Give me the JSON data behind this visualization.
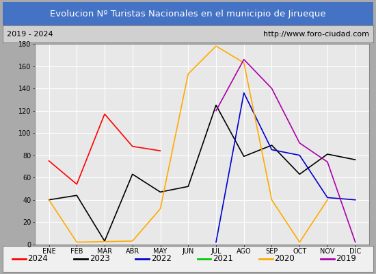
{
  "title": "Evolucion Nº Turistas Nacionales en el municipio de Jirueque",
  "subtitle_left": "2019 - 2024",
  "subtitle_right": "http://www.foro-ciudad.com",
  "months": [
    "ENE",
    "FEB",
    "MAR",
    "ABR",
    "MAY",
    "JUN",
    "JUL",
    "AGO",
    "SEP",
    "OCT",
    "NOV",
    "DIC"
  ],
  "series": {
    "2024": [
      75,
      54,
      117,
      88,
      84,
      null,
      null,
      null,
      null,
      null,
      null,
      null
    ],
    "2023": [
      40,
      44,
      3,
      63,
      47,
      52,
      125,
      79,
      89,
      63,
      81,
      76
    ],
    "2022": [
      null,
      null,
      null,
      null,
      null,
      null,
      2,
      136,
      85,
      80,
      42,
      40
    ],
    "2021": [
      null,
      null,
      null,
      null,
      null,
      null,
      null,
      null,
      null,
      null,
      null,
      null
    ],
    "2020": [
      40,
      2,
      null,
      3,
      32,
      153,
      178,
      163,
      40,
      2,
      40,
      null
    ],
    "2019": [
      null,
      null,
      null,
      null,
      null,
      null,
      120,
      166,
      140,
      91,
      74,
      2
    ]
  },
  "colors": {
    "2024": "#ff0000",
    "2023": "#000000",
    "2022": "#0000cc",
    "2021": "#00cc00",
    "2020": "#ffaa00",
    "2019": "#aa00aa"
  },
  "ylim": [
    0,
    180
  ],
  "yticks": [
    0,
    20,
    40,
    60,
    80,
    100,
    120,
    140,
    160,
    180
  ],
  "title_bg_color": "#4472c4",
  "title_text_color": "#ffffff",
  "plot_bg_color": "#e8e8e8",
  "subtitle_bg_color": "#d0d0d0",
  "grid_color": "#ffffff",
  "fig_bg_color": "#aaaaaa",
  "legend_order": [
    "2024",
    "2023",
    "2022",
    "2021",
    "2020",
    "2019"
  ]
}
